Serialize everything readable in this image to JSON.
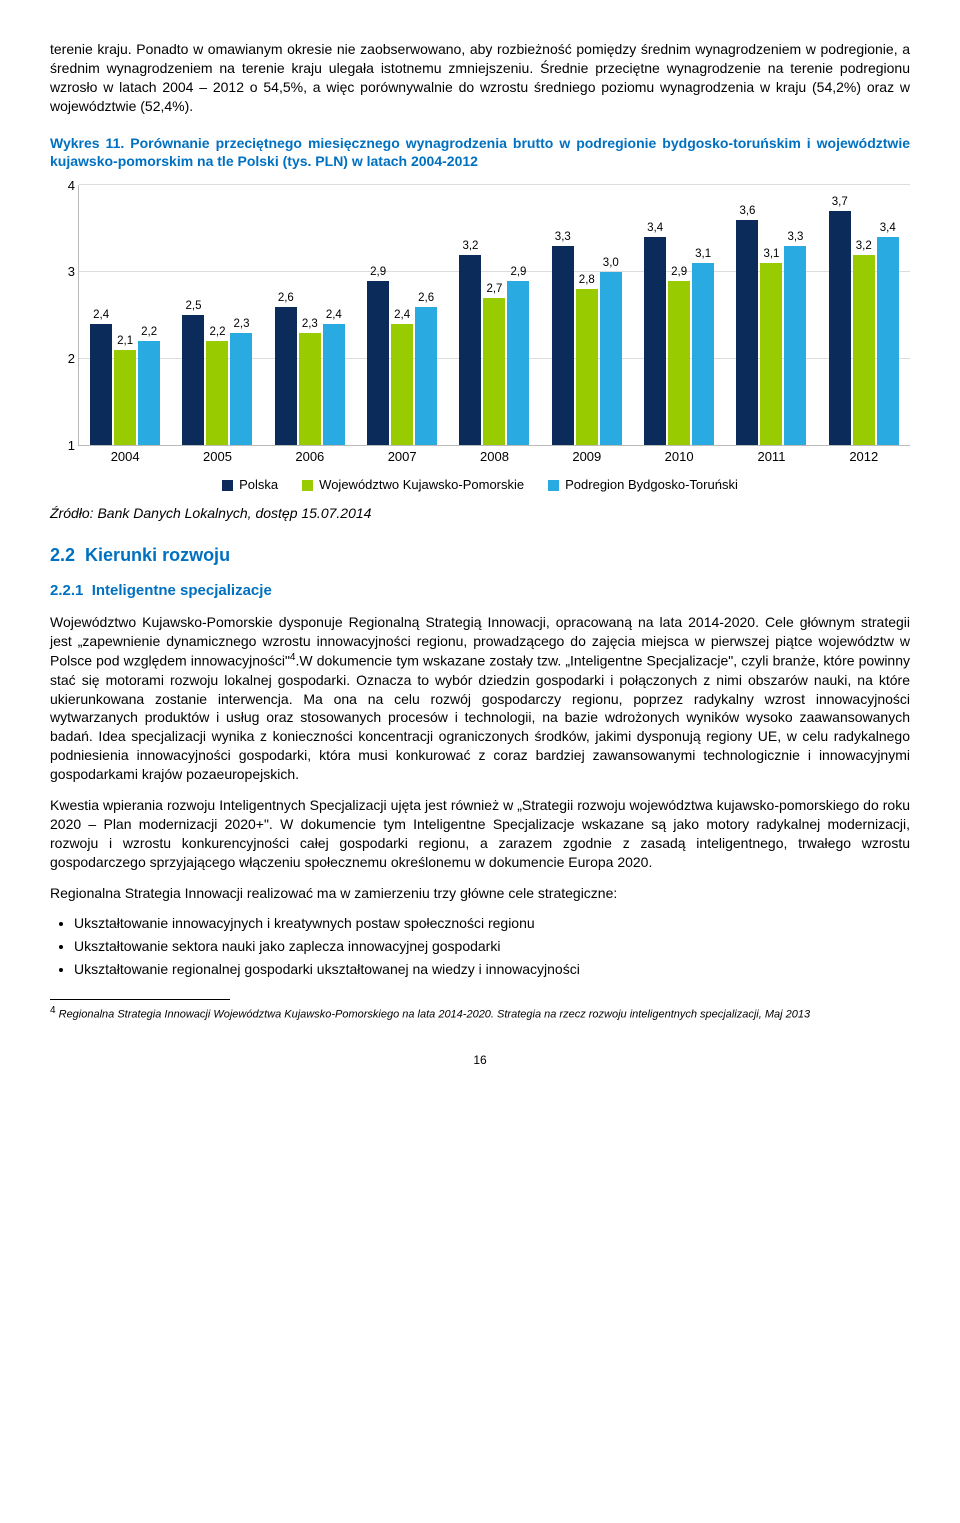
{
  "para1": "terenie kraju. Ponadto w omawianym okresie nie zaobserwowano, aby rozbieżność pomiędzy średnim wynagrodzeniem w podregionie, a średnim wynagrodzeniem na terenie kraju ulegała istotnemu zmniejszeniu. Średnie przeciętne wynagrodzenie na terenie podregionu wzrosło w latach 2004 – 2012 o 54,5%, a więc porównywalnie do wzrostu średniego poziomu wynagrodzenia w kraju (54,2%) oraz w województwie (52,4%).",
  "chart_title_lead": "Wykres 11.",
  "chart_title_rest": " Porównanie przeciętnego miesięcznego wynagrodzenia brutto w podregionie bydgosko-toruńskim i województwie kujawsko-pomorskim na tle Polski (tys. PLN) w latach 2004-2012",
  "chart": {
    "type": "bar",
    "ylim": [
      1,
      4
    ],
    "yticks": [
      1,
      2,
      3,
      4
    ],
    "categories": [
      "2004",
      "2005",
      "2006",
      "2007",
      "2008",
      "2009",
      "2010",
      "2011",
      "2012"
    ],
    "series": [
      {
        "name": "Polska",
        "color": "#0b2b5a",
        "values": [
          "2,4",
          "2,5",
          "2,6",
          "2,9",
          "3,2",
          "3,3",
          "3,4",
          "3,6",
          "3,7"
        ]
      },
      {
        "name": "Województwo Kujawsko-Pomorskie",
        "color": "#99cc00",
        "values": [
          "2,1",
          "2,2",
          "2,3",
          "2,4",
          "2,7",
          "2,8",
          "2,9",
          "3,1",
          "3,2"
        ]
      },
      {
        "name": "Podregion Bydgosko-Toruński",
        "color": "#29abe2",
        "values": [
          "2,2",
          "2,3",
          "2,4",
          "2,6",
          "2,9",
          "3,0",
          "3,1",
          "3,3",
          "3,4"
        ]
      }
    ],
    "background_color": "#ffffff",
    "grid_color": "#dddddd"
  },
  "legend": [
    "Polska",
    "Województwo Kujawsko-Pomorskie",
    "Podregion Bydgosko-Toruński"
  ],
  "source": "Źródło: Bank Danych Lokalnych, dostęp 15.07.2014",
  "sec_num": "2.2",
  "sec_title": "Kierunki rozwoju",
  "subsec_num": "2.2.1",
  "subsec_title": "Inteligentne specjalizacje",
  "para2a": "Województwo Kujawsko-Pomorskie dysponuje Regionalną Strategią Innowacji, opracowaną na lata 2014-2020. Cele głównym strategii jest „zapewnienie dynamicznego wzrostu innowacyjności regionu, prowadzącego do zajęcia miejsca w pierwszej piątce województw w Polsce pod względem innowacyjności\"",
  "para2b": ".W dokumencie tym wskazane zostały tzw. „Inteligentne Specjalizacje\", czyli branże, które powinny stać się motorami rozwoju lokalnej gospodarki. Oznacza to wybór dziedzin gospodarki i połączonych z nimi obszarów nauki, na które ukierunkowana zostanie interwencja. Ma ona na celu rozwój gospodarczy regionu, poprzez radykalny wzrost innowacyjności wytwarzanych produktów i usług oraz stosowanych procesów i technologii, na bazie wdrożonych wyników wysoko zaawansowanych badań. Idea specjalizacji wynika z konieczności koncentracji ograniczonych środków, jakimi dysponują regiony UE, w celu radykalnego podniesienia innowacyjności gospodarki, która musi konkurować z coraz bardziej zawansowanymi technologicznie i innowacyjnymi gospodarkami krajów pozaeuropejskich.",
  "para3": "Kwestia wpierania rozwoju Inteligentnych Specjalizacji ujęta jest również w „Strategii rozwoju województwa kujawsko-pomorskiego do roku 2020 – Plan modernizacji 2020+\". W dokumencie tym Inteligentne Specjalizacje wskazane są jako motory radykalnej modernizacji, rozwoju i wzrostu konkurencyjności całej gospodarki regionu, a zarazem zgodnie z zasadą inteligentnego, trwałego wzrostu gospodarczego sprzyjającego włączeniu społecznemu określonemu w dokumencie Europa 2020.",
  "para4": "Regionalna Strategia Innowacji realizować ma w zamierzeniu trzy główne cele strategiczne:",
  "bullets": [
    "Ukształtowanie innowacyjnych i kreatywnych postaw społeczności regionu",
    "Ukształtowanie sektora nauki jako zaplecza innowacyjnej gospodarki",
    "Ukształtowanie regionalnej gospodarki ukształtowanej na wiedzy i innowacyjności"
  ],
  "footnote_num": "4",
  "footnote": "Regionalna Strategia Innowacji Województwa Kujawsko-Pomorskiego na lata 2014-2020. Strategia na rzecz rozwoju inteligentnych specjalizacji, Maj 2013",
  "page_num": "16"
}
